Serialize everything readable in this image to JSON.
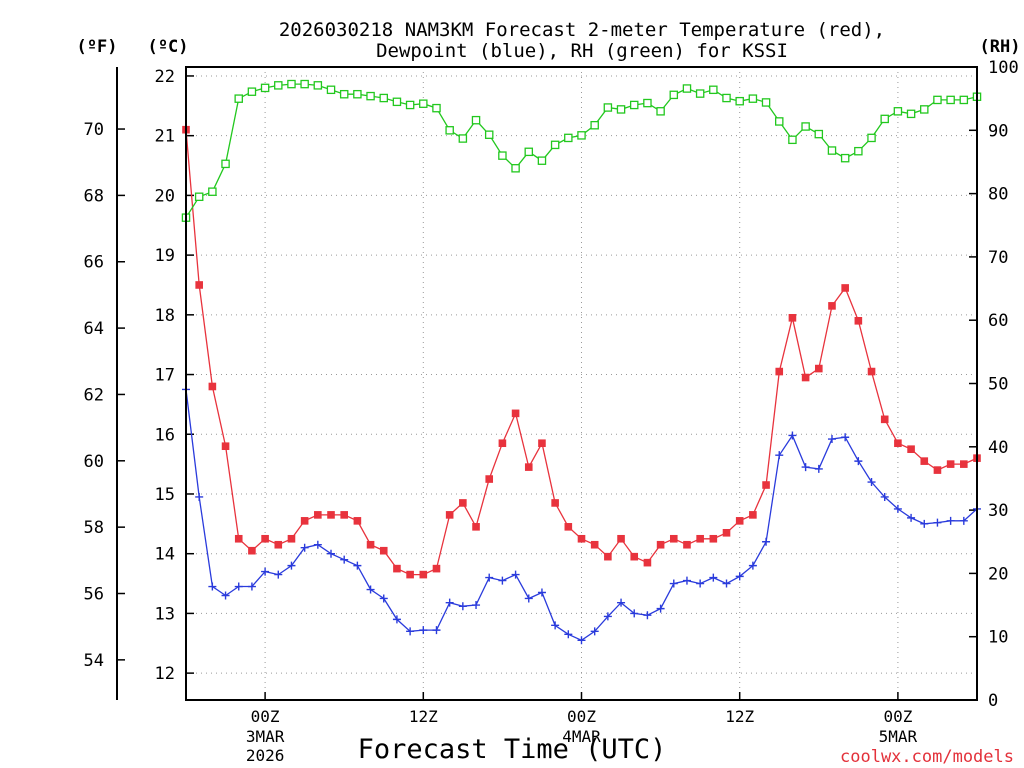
{
  "chart_data": {
    "type": "line",
    "title": "2026030218 NAM3KM Forecast 2-meter Temperature (red),\nDewpoint (blue), RH (green) for KSSI",
    "title_lines": [
      "2026030218 NAM3KM Forecast 2-meter Temperature (red),",
      "Dewpoint (blue), RH (green) for KSSI"
    ],
    "xlabel": "Forecast Time (UTC)",
    "watermark": "coolwx.com/models",
    "unit_labels": {
      "fahrenheit": "(ºF)",
      "celsius": "(ºC)",
      "rh": "(RH)"
    },
    "x_start_hour": 0,
    "x_end_hour": 60,
    "x_ticks": [
      {
        "hour": 6,
        "label": "00Z",
        "date": "3MAR",
        "year": "2026"
      },
      {
        "hour": 18,
        "label": "12Z"
      },
      {
        "hour": 30,
        "label": "00Z",
        "date": "4MAR"
      },
      {
        "hour": 42,
        "label": "12Z"
      },
      {
        "hour": 54,
        "label": "00Z",
        "date": "5MAR"
      }
    ],
    "y_left_celsius": {
      "range": [
        11.55,
        22.15
      ],
      "ticks": [
        12,
        13,
        14,
        15,
        16,
        17,
        18,
        19,
        20,
        21,
        22
      ]
    },
    "y_left_fahrenheit": {
      "ticks": [
        54,
        56,
        58,
        60,
        62,
        64,
        66,
        68,
        70
      ]
    },
    "y_right_rh": {
      "range": [
        0,
        100
      ],
      "ticks": [
        0,
        10,
        20,
        30,
        40,
        50,
        60,
        70,
        80,
        90,
        100
      ]
    },
    "grid": true,
    "colors": {
      "temperature": "#e8333d",
      "dewpoint": "#2a3bdc",
      "rh": "#22c81e"
    },
    "series": [
      {
        "name": "Temperature",
        "unit": "C",
        "color": "#e8333d",
        "marker": "filled-square",
        "values": [
          21.1,
          18.5,
          16.8,
          15.8,
          14.25,
          14.05,
          14.25,
          14.15,
          14.25,
          14.55,
          14.65,
          14.65,
          14.65,
          14.55,
          14.15,
          14.05,
          13.75,
          13.65,
          13.65,
          13.75,
          14.65,
          14.85,
          14.45,
          15.25,
          15.85,
          16.35,
          15.45,
          15.85,
          14.85,
          14.45,
          14.25,
          14.15,
          13.95,
          14.25,
          13.95,
          13.85,
          14.15,
          14.25,
          14.15,
          14.25,
          14.25,
          14.35,
          14.55,
          14.65,
          15.15,
          17.05,
          17.95,
          16.95,
          17.1,
          18.15,
          18.45,
          17.9,
          17.05,
          16.25,
          15.85,
          15.75,
          15.55,
          15.4,
          15.5,
          15.5,
          15.6
        ]
      },
      {
        "name": "Dewpoint",
        "unit": "C",
        "color": "#2a3bdc",
        "marker": "plus",
        "values": [
          16.75,
          14.95,
          13.45,
          13.3,
          13.45,
          13.45,
          13.7,
          13.65,
          13.8,
          14.1,
          14.15,
          14.0,
          13.9,
          13.8,
          13.4,
          13.25,
          12.9,
          12.7,
          12.72,
          12.72,
          13.18,
          13.12,
          13.14,
          13.6,
          13.55,
          13.65,
          13.25,
          13.35,
          12.8,
          12.65,
          12.55,
          12.7,
          12.95,
          13.18,
          13.0,
          12.97,
          13.08,
          13.5,
          13.55,
          13.5,
          13.6,
          13.5,
          13.62,
          13.8,
          14.2,
          15.65,
          15.98,
          15.45,
          15.42,
          15.92,
          15.95,
          15.55,
          15.2,
          14.95,
          14.75,
          14.6,
          14.5,
          14.52,
          14.55,
          14.55,
          14.75
        ]
      },
      {
        "name": "RH",
        "unit": "%",
        "color": "#22c81e",
        "marker": "open-square",
        "values": [
          76.2,
          79.5,
          80.3,
          84.7,
          95.0,
          96.1,
          96.7,
          97.1,
          97.3,
          97.3,
          97.1,
          96.4,
          95.7,
          95.7,
          95.4,
          95.1,
          94.5,
          94.0,
          94.2,
          93.5,
          90.0,
          88.7,
          91.6,
          89.3,
          86.0,
          84.0,
          86.6,
          85.2,
          87.7,
          88.8,
          89.2,
          90.8,
          93.6,
          93.3,
          94.0,
          94.3,
          93.0,
          95.6,
          96.6,
          95.8,
          96.4,
          95.1,
          94.6,
          95.0,
          94.4,
          91.4,
          88.5,
          90.6,
          89.4,
          86.8,
          85.6,
          86.7,
          88.8,
          91.8,
          93.0,
          92.6,
          93.3,
          94.8,
          94.8,
          94.8,
          95.3
        ]
      }
    ]
  }
}
